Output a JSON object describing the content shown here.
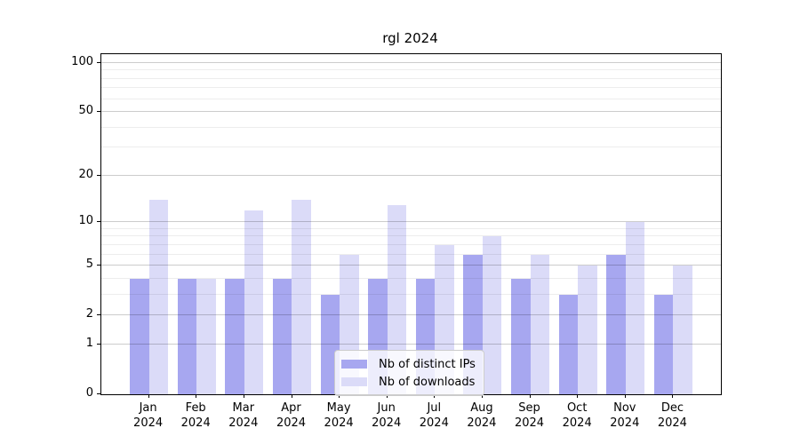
{
  "figure": {
    "title": "rgl 2024"
  },
  "legend": {
    "items": [
      {
        "label": "Nb of distinct IPs",
        "color": "#a7a7f0"
      },
      {
        "label": "Nb of downloads",
        "color": "#dbdbf8"
      }
    ],
    "position": "lower center"
  },
  "chart_data": {
    "type": "bar",
    "title": "rgl 2024",
    "categories": [
      "Jan",
      "Feb",
      "Mar",
      "Apr",
      "May",
      "Jun",
      "Jul",
      "Aug",
      "Sep",
      "Oct",
      "Nov",
      "Dec"
    ],
    "x_tick_second_line": "2024",
    "series": [
      {
        "name": "Nb of distinct IPs",
        "color": "#a7a7f0",
        "values": [
          4,
          4,
          4,
          4,
          3,
          4,
          4,
          6,
          4,
          3,
          6,
          3
        ]
      },
      {
        "name": "Nb of downloads",
        "color": "#dbdbf8",
        "values": [
          14,
          4,
          12,
          14,
          6,
          13,
          7,
          8,
          6,
          5,
          10,
          5
        ]
      }
    ],
    "xlabel": "",
    "ylabel": "",
    "yscale": "log1p",
    "ylim": [
      0,
      113
    ],
    "y_major_ticks": [
      0,
      1,
      2,
      5,
      10,
      20,
      50,
      100
    ],
    "y_minor_gridlines": [
      3,
      4,
      6,
      7,
      8,
      9,
      30,
      40,
      60,
      70,
      80,
      90
    ],
    "grid": true,
    "legend_position": "lower center"
  },
  "colors": {
    "background": "#ffffff",
    "spine": "#000000",
    "bar_ips": "#a7a7f0",
    "bar_downloads": "#dbdbf8",
    "grid_major": "rgba(0,0,0,0.20)",
    "grid_minor": "rgba(0,0,0,0.07)",
    "legend_border": "#cccccc"
  }
}
